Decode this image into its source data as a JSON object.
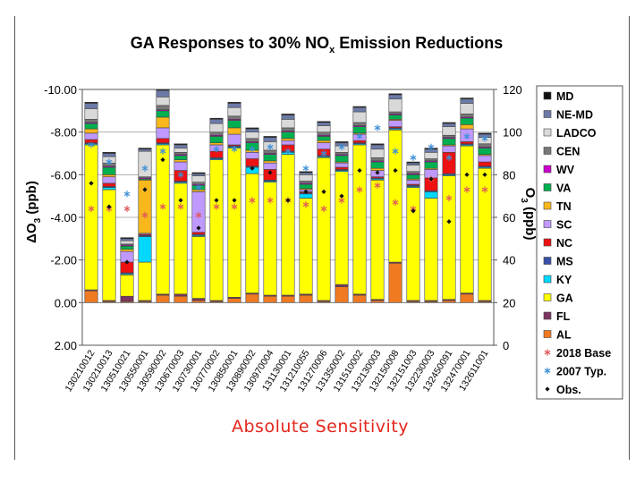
{
  "caption": "Absolute Sensitivity",
  "chart_data": {
    "type": "bar",
    "stacked": true,
    "title": "GA Responses to 30% NOx Emission Reductions",
    "title_prefix": "GA Responses to 30% NO",
    "title_sub": "x",
    "title_suffix": " Emission Reductions",
    "ylabel_left": "ΔO3 (ppb)",
    "ylabel_left_parts": {
      "delta": "Δ",
      "main": "O",
      "sub": "3",
      "unit": " (ppb)"
    },
    "ylabel_right": "O3 (ppb)",
    "ylabel_right_parts": {
      "main": "O",
      "sub": "3",
      "unit": " (ppb)"
    },
    "left_axis": {
      "range": [
        2.0,
        -10.0
      ],
      "inverted": true,
      "ticks": [
        "-10.00",
        "-8.00",
        "-6.00",
        "-4.00",
        "-2.00",
        "0.00",
        "2.00"
      ],
      "tick_values": [
        -10,
        -8,
        -6,
        -4,
        -2,
        0,
        2
      ]
    },
    "right_axis": {
      "range": [
        0,
        120
      ],
      "ticks": [
        "120",
        "100",
        "80",
        "60",
        "40",
        "20",
        "0"
      ],
      "tick_values": [
        120,
        100,
        80,
        60,
        40,
        20,
        0
      ]
    },
    "grid": "horizontal",
    "legend_position": "right",
    "categories": [
      "130210012",
      "130210013",
      "130510021",
      "130550001",
      "130590002",
      "130670003",
      "130730001",
      "130770002",
      "130850001",
      "130890002",
      "130970004",
      "131130001",
      "131210055",
      "131270006",
      "131350002",
      "131510002",
      "132130003",
      "132150008",
      "132151003",
      "132230003",
      "132450091",
      "132470001",
      "132611001"
    ],
    "categories_shown": [
      "130210012",
      "130210013",
      "130510021",
      "130550001",
      "130590002",
      "130670003",
      "130730001",
      "130770002",
      "130850001",
      "130890002",
      "130970004",
      "131130001",
      "131210055",
      "131270006",
      "131350002",
      "131510002",
      "132130003",
      "132150008",
      "132151003",
      "132230003",
      "132450091",
      "132470001",
      "132611001"
    ],
    "series": [
      {
        "name": "AL",
        "color": "#f07a22",
        "values": [
          -0.55,
          -0.05,
          -0.05,
          -0.05,
          -0.35,
          -0.3,
          -0.1,
          -0.05,
          -0.2,
          -0.4,
          -0.3,
          -0.3,
          -0.35,
          -0.05,
          -0.75,
          -0.35,
          -0.1,
          -1.85,
          -0.05,
          -0.05,
          -0.1,
          -0.4,
          -0.05
        ]
      },
      {
        "name": "FL",
        "color": "#7b3560",
        "values": [
          -0.05,
          -0.05,
          -0.25,
          -0.05,
          -0.05,
          -0.1,
          -0.1,
          -0.05,
          -0.05,
          -0.05,
          -0.05,
          -0.05,
          -0.05,
          -0.05,
          -0.1,
          -0.05,
          -0.05,
          -0.05,
          -0.05,
          -0.05,
          -0.05,
          -0.05,
          -0.05
        ]
      },
      {
        "name": "GA",
        "color": "#ffff00",
        "values": [
          -6.8,
          -5.2,
          -1.0,
          -1.8,
          -7.0,
          -5.2,
          -2.9,
          -6.6,
          -7.0,
          -5.6,
          -5.3,
          -6.6,
          -4.5,
          -6.7,
          -5.3,
          -7.0,
          -5.6,
          -6.2,
          -5.3,
          -4.8,
          -5.8,
          -6.9,
          -6.2
        ]
      },
      {
        "name": "KY",
        "color": "#00d8ff",
        "values": [
          -0.05,
          -0.1,
          -0.05,
          -1.2,
          -0.05,
          -0.05,
          -0.05,
          -0.05,
          -0.05,
          -0.3,
          -0.05,
          -0.1,
          -0.2,
          -0.05,
          -0.05,
          -0.05,
          -0.05,
          -0.05,
          -0.05,
          -0.3,
          -0.05,
          -0.05,
          -0.05
        ]
      },
      {
        "name": "MS",
        "color": "#3a50a8",
        "values": [
          -0.05,
          -0.05,
          -0.05,
          -0.05,
          -0.05,
          -0.05,
          -0.05,
          -0.05,
          -0.05,
          -0.05,
          -0.05,
          -0.05,
          -0.05,
          -0.05,
          -0.05,
          -0.05,
          -0.05,
          -0.05,
          -0.05,
          -0.05,
          -0.05,
          -0.05,
          -0.05
        ]
      },
      {
        "name": "NC",
        "color": "#ee1111",
        "values": [
          -0.15,
          -0.15,
          -0.5,
          -0.05,
          -0.2,
          -0.5,
          -0.1,
          -0.3,
          -0.05,
          -0.35,
          -0.5,
          -0.3,
          -0.05,
          -0.3,
          -0.1,
          -0.1,
          -0.05,
          -0.05,
          -0.05,
          -0.6,
          -1.0,
          -0.1,
          -0.2
        ]
      },
      {
        "name": "SC",
        "color": "#bf99ff",
        "values": [
          -0.3,
          -0.3,
          -0.5,
          -0.05,
          -0.5,
          -0.4,
          -1.9,
          -0.3,
          -0.5,
          -0.3,
          -0.3,
          -0.2,
          -0.1,
          -0.3,
          -0.2,
          -0.3,
          -0.3,
          -0.3,
          -0.2,
          -0.4,
          -0.3,
          -0.6,
          -0.3
        ]
      },
      {
        "name": "TN",
        "color": "#f8b81c",
        "values": [
          -0.2,
          -0.1,
          -0.1,
          -2.5,
          -0.5,
          -0.1,
          -0.1,
          -0.1,
          -0.3,
          -0.1,
          -0.1,
          -0.1,
          -0.05,
          -0.1,
          -0.05,
          -0.05,
          -0.1,
          -0.05,
          -0.05,
          -0.05,
          -0.05,
          -0.2,
          -0.05
        ]
      },
      {
        "name": "VA",
        "color": "#00b050",
        "values": [
          -0.25,
          -0.35,
          -0.15,
          -0.05,
          -0.3,
          -0.2,
          -0.2,
          -0.3,
          -0.35,
          -0.35,
          -0.3,
          -0.3,
          -0.2,
          -0.2,
          -0.3,
          -0.3,
          -0.3,
          -0.2,
          -0.2,
          -0.3,
          -0.3,
          -0.3,
          -0.3
        ]
      },
      {
        "name": "WV",
        "color": "#cc00cc",
        "values": [
          -0.05,
          -0.05,
          -0.05,
          -0.05,
          -0.05,
          -0.05,
          -0.05,
          -0.05,
          -0.05,
          -0.05,
          -0.05,
          -0.05,
          -0.05,
          -0.05,
          -0.05,
          -0.05,
          -0.05,
          -0.05,
          -0.05,
          -0.05,
          -0.05,
          -0.05,
          -0.05
        ]
      },
      {
        "name": "CEN",
        "color": "#777777",
        "values": [
          -0.15,
          -0.15,
          -0.05,
          -0.05,
          -0.2,
          -0.1,
          -0.1,
          -0.15,
          -0.15,
          -0.15,
          -0.15,
          -0.15,
          -0.1,
          -0.15,
          -0.1,
          -0.15,
          -0.15,
          -0.1,
          -0.1,
          -0.1,
          -0.1,
          -0.15,
          -0.15
        ]
      },
      {
        "name": "LADCO",
        "color": "#d9d9d9",
        "values": [
          -0.5,
          -0.3,
          -0.15,
          -1.2,
          -0.4,
          -0.2,
          -0.3,
          -0.4,
          -0.4,
          -0.3,
          -0.4,
          -0.4,
          -0.3,
          -0.3,
          -0.3,
          -0.5,
          -0.4,
          -0.6,
          -0.3,
          -0.3,
          -0.4,
          -0.5,
          -0.3
        ]
      },
      {
        "name": "NE-MD",
        "color": "#6c7aa8",
        "values": [
          -0.25,
          -0.15,
          -0.1,
          -0.1,
          -0.3,
          -0.15,
          -0.1,
          -0.2,
          -0.2,
          -0.15,
          -0.2,
          -0.2,
          -0.1,
          -0.15,
          -0.15,
          -0.2,
          -0.2,
          -0.2,
          -0.1,
          -0.15,
          -0.15,
          -0.2,
          -0.15
        ]
      },
      {
        "name": "MD",
        "color": "#111111",
        "values": [
          -0.05,
          -0.05,
          -0.05,
          -0.05,
          -0.05,
          -0.05,
          -0.05,
          -0.05,
          -0.05,
          -0.05,
          -0.05,
          -0.05,
          -0.05,
          -0.05,
          -0.05,
          -0.05,
          -0.05,
          -0.05,
          -0.05,
          -0.05,
          -0.05,
          -0.05,
          -0.05
        ]
      }
    ],
    "markers": [
      {
        "name": "2018 Base",
        "symbol": "asterisk",
        "color": "#e05a5a",
        "axis": "right",
        "values": [
          64,
          64,
          64,
          61,
          65,
          65,
          61,
          65,
          65,
          68,
          68,
          68,
          66,
          64,
          68,
          73,
          75,
          67,
          64,
          78,
          69,
          73,
          73
        ]
      },
      {
        "name": "2007 Typ.",
        "symbol": "asterisk",
        "color": "#3d8fd8",
        "axis": "right",
        "values": [
          94,
          86,
          71,
          83,
          91,
          80,
          74,
          92,
          92,
          92,
          93,
          91,
          83,
          90,
          93,
          98,
          102,
          91,
          88,
          93,
          88,
          98,
          97
        ]
      },
      {
        "name": "Obs.",
        "symbol": "diamond",
        "color": "#111111",
        "axis": "right",
        "values": [
          76,
          65,
          39,
          73,
          87,
          68,
          55,
          68,
          68,
          83,
          81,
          68,
          72,
          72,
          70,
          82,
          81,
          82,
          63,
          78,
          58,
          80,
          80
        ]
      }
    ],
    "legend": [
      "MD",
      "NE-MD",
      "LADCO",
      "CEN",
      "WV",
      "VA",
      "TN",
      "SC",
      "NC",
      "MS",
      "KY",
      "GA",
      "FL",
      "AL",
      "2018 Base",
      "2007 Typ.",
      "Obs."
    ]
  }
}
